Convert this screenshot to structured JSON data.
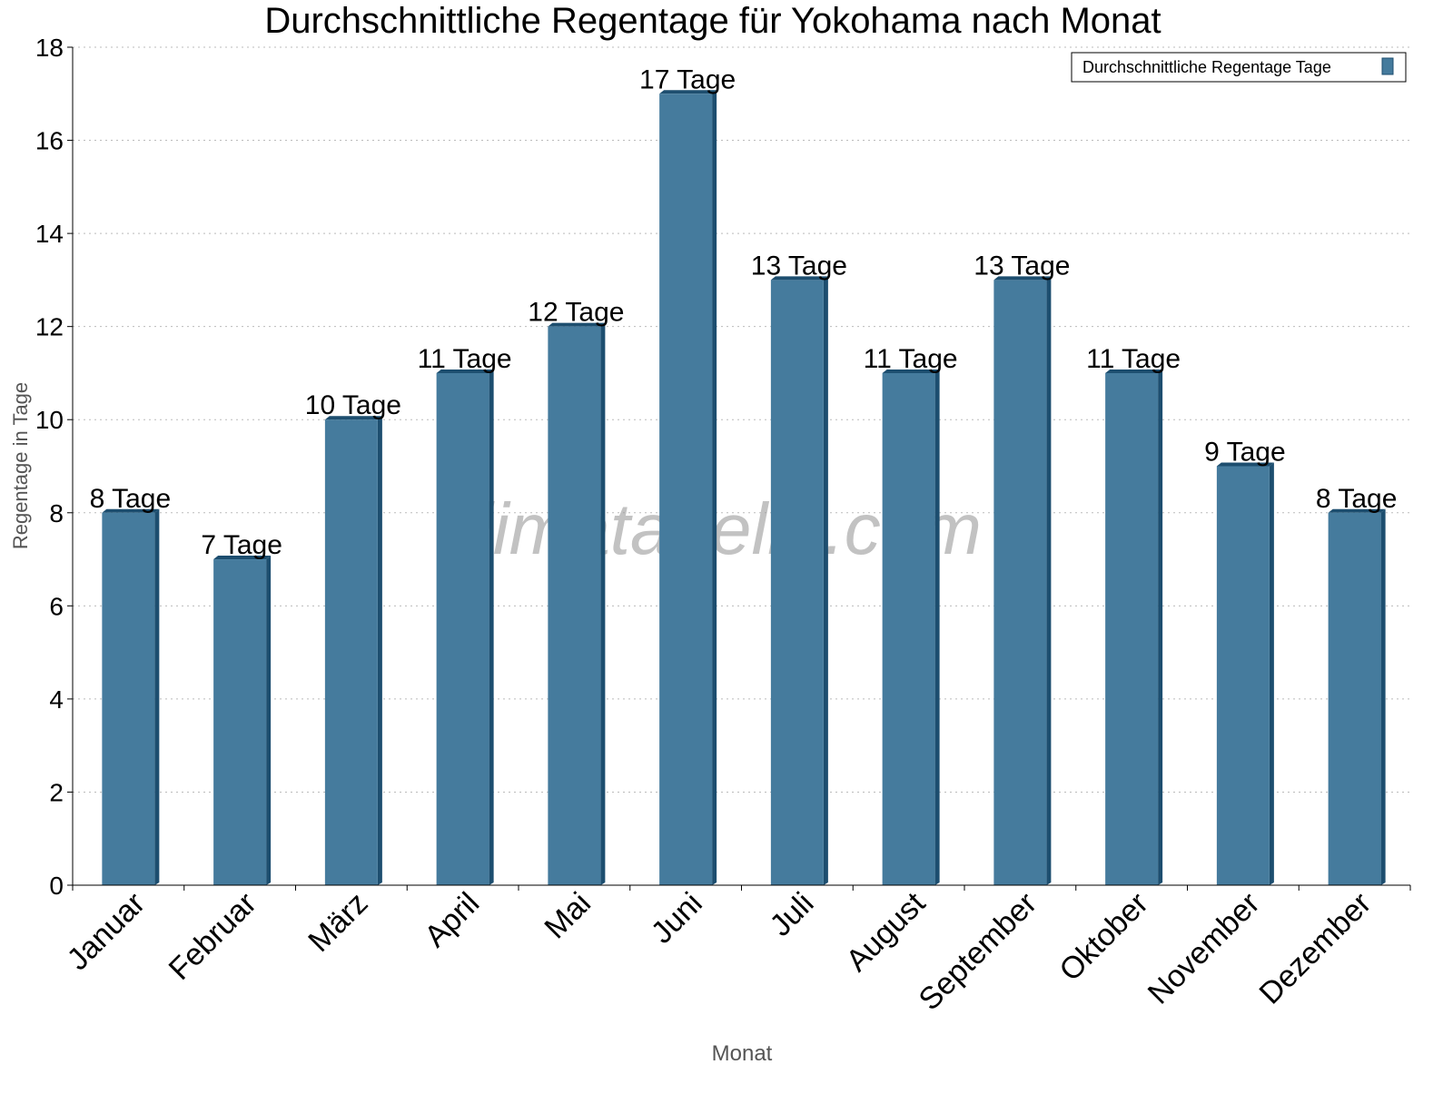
{
  "chart_data": {
    "type": "bar",
    "title": "Durchschnittliche Regentage für Yokohama nach Monat",
    "xlabel": "Monat",
    "ylabel": "Regentage in Tage",
    "ylim": [
      0,
      18
    ],
    "yticks": [
      0,
      2,
      4,
      6,
      8,
      10,
      12,
      14,
      16,
      18
    ],
    "grid": true,
    "legend_position": "top-right",
    "categories": [
      "Januar",
      "Februar",
      "März",
      "April",
      "Mai",
      "Juni",
      "Juli",
      "August",
      "September",
      "Oktober",
      "November",
      "Dezember"
    ],
    "series": [
      {
        "name": "Durchschnittliche Regentage Tage",
        "values": [
          8,
          7,
          10,
          11,
          12,
          17,
          13,
          11,
          13,
          11,
          9,
          8
        ],
        "color": "#457b9d",
        "side_color": "#1d4e6f"
      }
    ],
    "data_labels": [
      "8 Tage",
      "7 Tage",
      "10 Tage",
      "11 Tage",
      "12 Tage",
      "17 Tage",
      "13 Tage",
      "11 Tage",
      "13 Tage",
      "11 Tage",
      "9 Tage",
      "8 Tage"
    ],
    "watermark": "klimatabelle.com"
  }
}
